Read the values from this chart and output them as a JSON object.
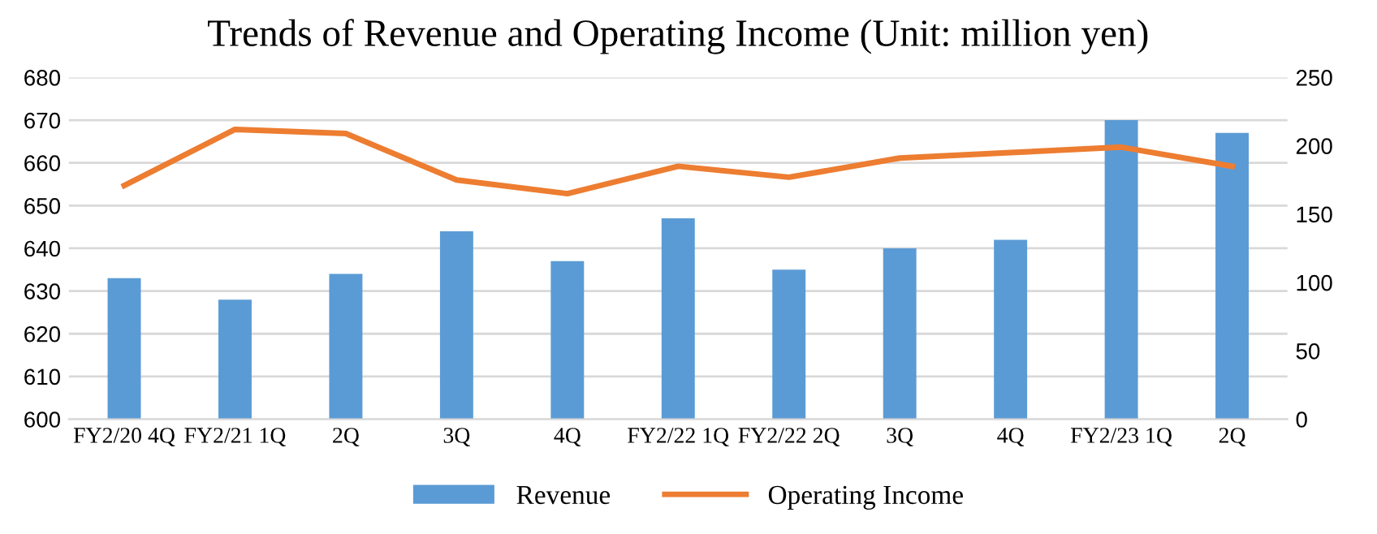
{
  "chart_data": {
    "type": "bar",
    "title": "Trends of Revenue and Operating Income (Unit: million yen)",
    "categories": [
      "FY2/20 4Q",
      "FY2/21 1Q",
      "2Q",
      "3Q",
      "4Q",
      "FY2/22 1Q",
      "FY2/22 2Q",
      "3Q",
      "4Q",
      "FY2/23 1Q",
      "2Q"
    ],
    "series": [
      {
        "name": "Revenue",
        "color": "#5b9bd5",
        "values": [
          633,
          628,
          634,
          644,
          637,
          647,
          635,
          640,
          642,
          670,
          667
        ]
      },
      {
        "name": "Operating Income",
        "type": "line",
        "axis": "y2",
        "color": "#ed7d31",
        "values": [
          171,
          212,
          209,
          175,
          165,
          185,
          177,
          191,
          195,
          199,
          185
        ]
      }
    ],
    "ylim": [
      600,
      680
    ],
    "yticks": [
      600,
      610,
      620,
      630,
      640,
      650,
      660,
      670,
      680
    ],
    "y2lim": [
      0,
      250
    ],
    "y2ticks": [
      0,
      50,
      100,
      150,
      200,
      250
    ],
    "grid": "y",
    "legend": "bottom",
    "marker": "none",
    "line_style": "solid"
  }
}
